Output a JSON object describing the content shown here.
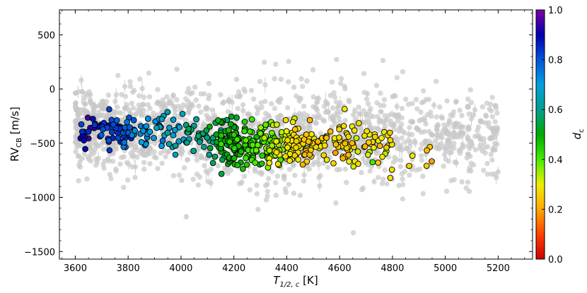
{
  "chart_data": {
    "type": "scatter",
    "xlabel": "T",
    "xlabel_sub": "1/2, c",
    "xlabel_unit": " [K]",
    "ylabel": "RV",
    "ylabel_sub": "CB",
    "ylabel_unit": " [m/s]",
    "colorbar_label": "d",
    "colorbar_label_sub": "c",
    "xlim": [
      3540,
      5330
    ],
    "ylim": [
      -1570,
      730
    ],
    "xticks": [
      3600,
      3800,
      4000,
      4200,
      4400,
      4600,
      4800,
      5000,
      5200
    ],
    "yticks": [
      -1500,
      -1000,
      -500,
      0,
      500
    ],
    "cticks": [
      "0.0",
      "0.2",
      "0.4",
      "0.6",
      "0.8",
      "1.0"
    ],
    "colormap": "nipy_spectral-like (red-orange-yellow-green-cyan-blue-purple)",
    "background_marker_color": "#c8c8c8",
    "highlighted_marker_edge": "#000000",
    "highlighted_points_trend": [
      {
        "x": 3650,
        "y": -370,
        "d": 0.88
      },
      {
        "x": 3800,
        "y": -380,
        "d": 0.8
      },
      {
        "x": 3950,
        "y": -390,
        "d": 0.68
      },
      {
        "x": 4100,
        "y": -450,
        "d": 0.58
      },
      {
        "x": 4250,
        "y": -520,
        "d": 0.45
      },
      {
        "x": 4400,
        "y": -520,
        "d": 0.3
      },
      {
        "x": 4550,
        "y": -500,
        "d": 0.25
      },
      {
        "x": 4700,
        "y": -520,
        "d": 0.3
      },
      {
        "x": 5050,
        "y": -560,
        "d": 0.2
      }
    ],
    "background_points_trend": [
      {
        "x": 3650,
        "y": -350,
        "spread": 180
      },
      {
        "x": 4000,
        "y": -400,
        "spread": 200
      },
      {
        "x": 4400,
        "y": -430,
        "spread": 230
      },
      {
        "x": 4800,
        "y": -420,
        "spread": 220
      },
      {
        "x": 5200,
        "y": -400,
        "spread": 200
      }
    ]
  }
}
